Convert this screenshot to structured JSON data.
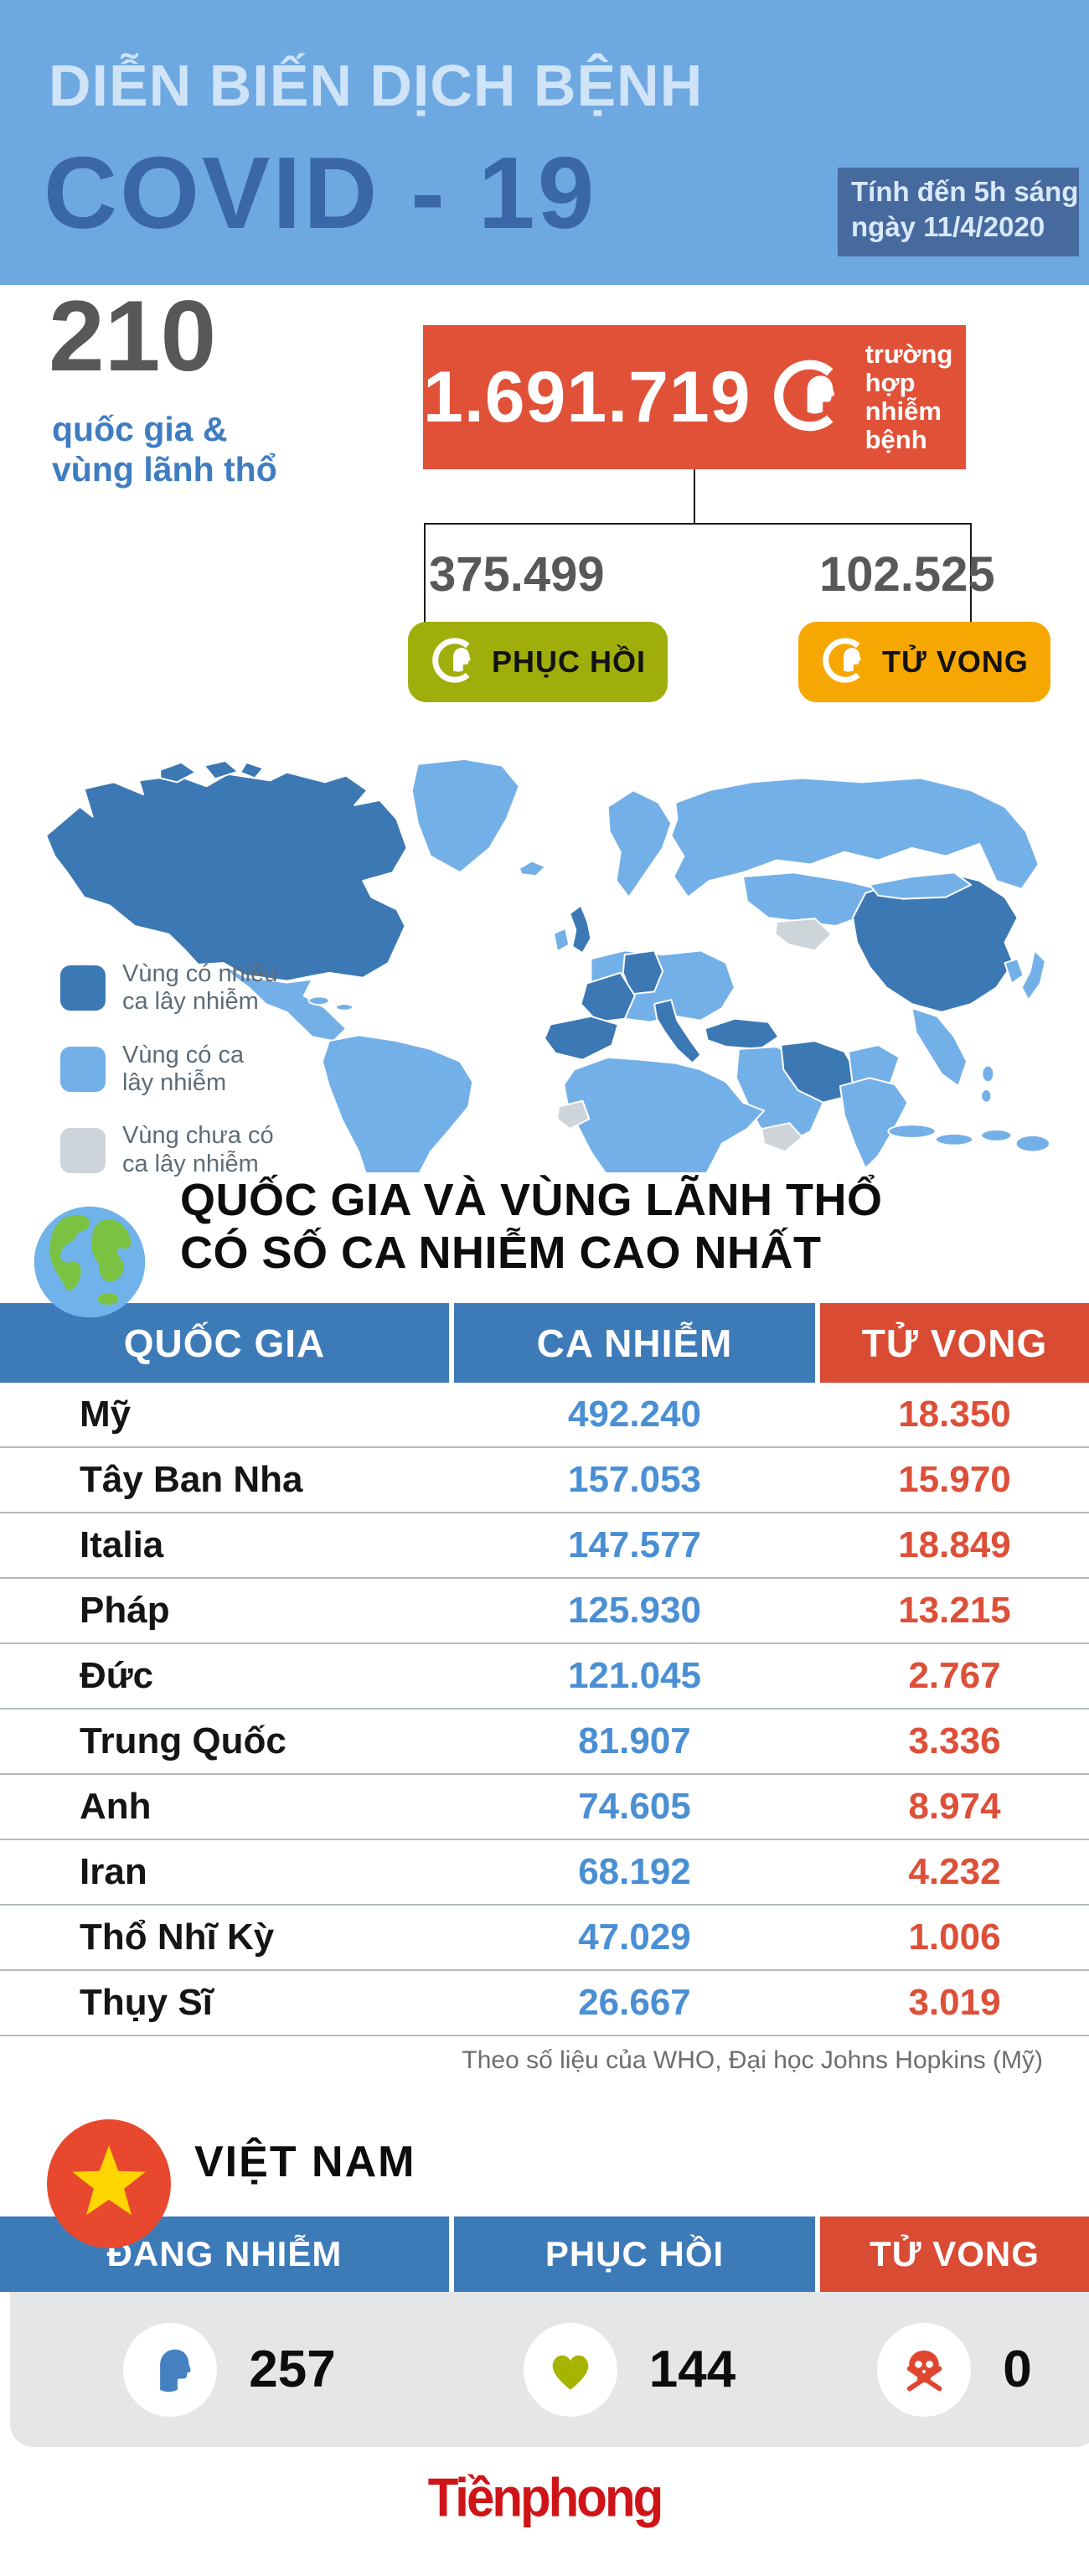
{
  "header": {
    "supertitle": "DIỄN BIẾN DỊCH BỆNH",
    "title": "COVID - 19",
    "date_note_line1": "Tính đến 5h sáng",
    "date_note_line2": "ngày 11/4/2020"
  },
  "summary": {
    "territories_number": "210",
    "territories_label_line1": "quốc gia &",
    "territories_label_line2": "vùng lãnh thổ",
    "infected_value": "1.691.719",
    "infected_label_line1": "trường hợp",
    "infected_label_line2": "nhiễm bệnh",
    "recovered_value": "375.499",
    "recovered_label": "PHỤC HỒI",
    "deaths_value": "102.525",
    "deaths_label": "TỬ VONG"
  },
  "map": {
    "legend": [
      {
        "label_line1": "Vùng có nhiều",
        "label_line2": "ca lây nhiễm",
        "color": "#3c78b4"
      },
      {
        "label_line1": "Vùng có ca",
        "label_line2": "lây nhiễm",
        "color": "#74b0e8"
      },
      {
        "label_line1": "Vùng chưa có",
        "label_line2": "ca lây nhiễm",
        "color": "#cdd4da"
      }
    ]
  },
  "table": {
    "title_line1": "QUỐC GIA VÀ VÙNG LÃNH THỔ",
    "title_line2": "CÓ SỐ CA NHIỄM CAO NHẤT",
    "columns": [
      "QUỐC GIA",
      "CA NHIỄM",
      "TỬ VONG"
    ],
    "rows": [
      {
        "country": "Mỹ",
        "cases": "492.240",
        "deaths": "18.350"
      },
      {
        "country": "Tây Ban Nha",
        "cases": "157.053",
        "deaths": "15.970"
      },
      {
        "country": "Italia",
        "cases": "147.577",
        "deaths": "18.849"
      },
      {
        "country": "Pháp",
        "cases": "125.930",
        "deaths": "13.215"
      },
      {
        "country": "Đức",
        "cases": "121.045",
        "deaths": "2.767"
      },
      {
        "country": "Trung Quốc",
        "cases": "81.907",
        "deaths": "3.336"
      },
      {
        "country": "Anh",
        "cases": "74.605",
        "deaths": "8.974"
      },
      {
        "country": "Iran",
        "cases": "68.192",
        "deaths": "4.232"
      },
      {
        "country": "Thổ Nhĩ Kỳ",
        "cases": "47.029",
        "deaths": "1.006"
      },
      {
        "country": "Thụy Sĩ",
        "cases": "26.667",
        "deaths": "3.019"
      }
    ],
    "source": "Theo số liệu của WHO, Đại học Johns Hopkins (Mỹ)"
  },
  "vietnam": {
    "title": "VIỆT NAM",
    "columns": [
      "ĐANG NHIỄM",
      "PHỤC HỒI",
      "TỬ VONG"
    ],
    "stats": [
      {
        "label": "ĐANG NHIỄM",
        "value": "257"
      },
      {
        "label": "PHỤC HỒI",
        "value": "144"
      },
      {
        "label": "TỬ VONG",
        "value": "0"
      }
    ]
  },
  "footer": {
    "logo_text": "Tiềnphong"
  },
  "colors": {
    "header_bg": "#6ea8e0",
    "accent_blue": "#3d7ab8",
    "accent_red": "#d94b33",
    "infected_red": "#e05138",
    "recovered_green": "#9fae0b",
    "deaths_orange": "#f7a701",
    "map_many_cases": "#3c78b4",
    "map_has_cases": "#74b0e8",
    "map_no_cases": "#cdd4da"
  },
  "chart_data": {
    "type": "table",
    "title": "QUỐC GIA VÀ VÙNG LÃNH THỔ CÓ SỐ CA NHIỄM CAO NHẤT",
    "columns": [
      "QUỐC GIA",
      "CA NHIỄM",
      "TỬ VONG"
    ],
    "rows": [
      [
        "Mỹ",
        492240,
        18350
      ],
      [
        "Tây Ban Nha",
        157053,
        15970
      ],
      [
        "Italia",
        147577,
        18849
      ],
      [
        "Pháp",
        125930,
        13215
      ],
      [
        "Đức",
        121045,
        2767
      ],
      [
        "Trung Quốc",
        81907,
        3336
      ],
      [
        "Anh",
        74605,
        8974
      ],
      [
        "Iran",
        68192,
        4232
      ],
      [
        "Thổ Nhĩ Kỳ",
        47029,
        1006
      ],
      [
        "Thụy Sĩ",
        26667,
        3019
      ]
    ],
    "summary": {
      "countries_and_territories": 210,
      "total_infected": 1691719,
      "recovered": 375499,
      "deaths": 102525,
      "as_of": "5h sáng ngày 11/4/2020"
    },
    "vietnam": {
      "active": 257,
      "recovered": 144,
      "deaths": 0
    },
    "map_categories": [
      "Vùng có nhiều ca lây nhiễm",
      "Vùng có ca lây nhiễm",
      "Vùng chưa có ca lây nhiễm"
    ]
  }
}
